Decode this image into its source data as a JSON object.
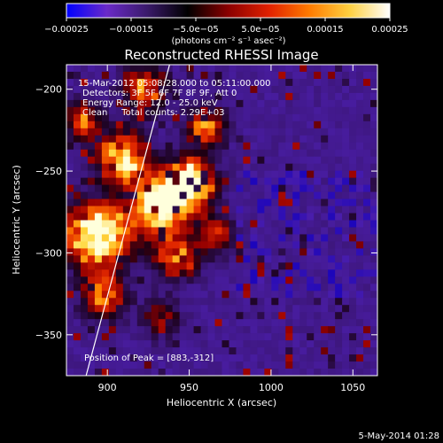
{
  "chart_data": {
    "type": "heatmap",
    "title": "Reconstructed RHESSI Image",
    "xlabel": "Heliocentric X (arcsec)",
    "ylabel": "Heliocentric Y (arcsec)",
    "xlim": [
      875,
      1065
    ],
    "ylim": [
      -375,
      -185
    ],
    "x_ticks": [
      900,
      950,
      1000,
      1050
    ],
    "x_tick_labels": [
      "900",
      "950",
      "1000",
      "1050"
    ],
    "y_ticks": [
      -350,
      -300,
      -250,
      -200
    ],
    "y_tick_labels": [
      "−350",
      "−300",
      "−250",
      "−200"
    ],
    "colorbar": {
      "min": -0.00025,
      "max": 0.00025,
      "ticks": [
        -0.00025,
        -0.00015,
        -5e-05,
        5e-05,
        0.00015,
        0.00025
      ],
      "tick_labels": [
        "−0.00025",
        "−0.00015",
        "−5.0e−05",
        "5.0e−05",
        "0.00015",
        "0.00025"
      ],
      "label": "(photons cm⁻² s⁻¹ asec⁻²)",
      "colormap": [
        "#0000ff",
        "#6a2ac8",
        "#3a1a6a",
        "#000000",
        "#8a0000",
        "#e02000",
        "#ff7a00",
        "#ffd040",
        "#ffffff"
      ]
    },
    "annotations": [
      "15-Mar-2012 05:08:28.000 to 05:11:00.000",
      "Detectors: 3F 5F 6F 7F 8F 9F, Att 0",
      "Energy Range: 12.0 - 25.0 keV",
      "Clean     Total counts: 2.29E+03"
    ],
    "peak_label": "Position of Peak = [883,-312]",
    "peak": [
      883,
      -312
    ],
    "limb_line": [
      [
        887,
        -375
      ],
      [
        938,
        -185
      ]
    ],
    "timestamp": "5-May-2014 01:28"
  }
}
